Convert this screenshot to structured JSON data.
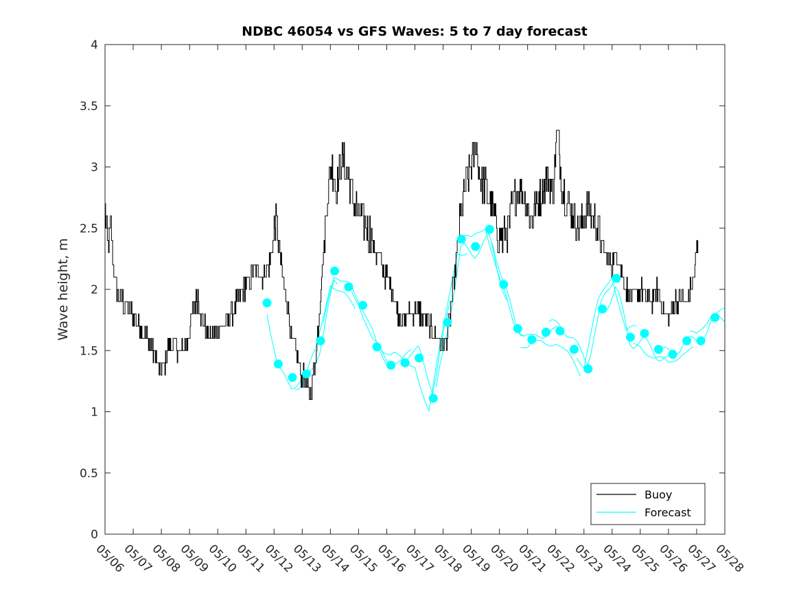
{
  "chart_data": {
    "type": "line",
    "title": "NDBC 46054 vs GFS Waves: 5 to 7 day forecast",
    "xlabel": "",
    "ylabel": "Wave height, m",
    "x_ticks": [
      "05/06",
      "05/07",
      "05/08",
      "05/09",
      "05/10",
      "05/11",
      "05/12",
      "05/13",
      "05/14",
      "05/15",
      "05/16",
      "05/17",
      "05/18",
      "05/19",
      "05/20",
      "05/21",
      "05/22",
      "05/23",
      "05/24",
      "05/25",
      "05/26",
      "05/27",
      "05/28"
    ],
    "xlim": [
      0,
      22
    ],
    "ylim": [
      0,
      4
    ],
    "y_ticks": [
      "0",
      "0.5",
      "1",
      "1.5",
      "2",
      "2.5",
      "3",
      "3.5",
      "4"
    ],
    "grid": false,
    "legend_position": "bottom-right",
    "legend": [
      {
        "label": "Buoy",
        "color": "#000000"
      },
      {
        "label": "Forecast",
        "color": "#00ffff"
      }
    ],
    "buoy_anchors": [
      [
        0.0,
        2.65
      ],
      [
        0.1,
        2.35
      ],
      [
        0.2,
        2.5
      ],
      [
        0.3,
        2.2
      ],
      [
        0.4,
        2.0
      ],
      [
        0.6,
        1.9
      ],
      [
        0.8,
        1.85
      ],
      [
        1.0,
        1.8
      ],
      [
        1.3,
        1.7
      ],
      [
        1.5,
        1.6
      ],
      [
        1.7,
        1.5
      ],
      [
        1.85,
        1.4
      ],
      [
        1.95,
        1.3
      ],
      [
        2.1,
        1.4
      ],
      [
        2.3,
        1.55
      ],
      [
        2.5,
        1.55
      ],
      [
        2.7,
        1.5
      ],
      [
        2.9,
        1.55
      ],
      [
        3.0,
        1.7
      ],
      [
        3.1,
        1.85
      ],
      [
        3.3,
        1.95
      ],
      [
        3.4,
        1.8
      ],
      [
        3.6,
        1.65
      ],
      [
        3.8,
        1.6
      ],
      [
        4.0,
        1.65
      ],
      [
        4.2,
        1.7
      ],
      [
        4.4,
        1.75
      ],
      [
        4.6,
        1.85
      ],
      [
        4.8,
        1.95
      ],
      [
        5.0,
        2.05
      ],
      [
        5.2,
        2.1
      ],
      [
        5.4,
        2.15
      ],
      [
        5.6,
        2.1
      ],
      [
        5.8,
        2.2
      ],
      [
        5.95,
        2.35
      ],
      [
        6.05,
        2.6
      ],
      [
        6.15,
        2.4
      ],
      [
        6.3,
        2.1
      ],
      [
        6.5,
        1.85
      ],
      [
        6.6,
        1.6
      ],
      [
        6.8,
        1.45
      ],
      [
        6.9,
        1.35
      ],
      [
        7.0,
        1.3
      ],
      [
        7.1,
        1.25
      ],
      [
        7.25,
        1.15
      ],
      [
        7.35,
        1.25
      ],
      [
        7.45,
        1.4
      ],
      [
        7.6,
        1.8
      ],
      [
        7.75,
        2.3
      ],
      [
        7.9,
        2.8
      ],
      [
        8.05,
        3.05
      ],
      [
        8.2,
        2.8
      ],
      [
        8.4,
        3.05
      ],
      [
        8.6,
        2.95
      ],
      [
        8.8,
        2.75
      ],
      [
        9.0,
        2.6
      ],
      [
        9.2,
        2.55
      ],
      [
        9.4,
        2.45
      ],
      [
        9.6,
        2.3
      ],
      [
        9.8,
        2.2
      ],
      [
        10.0,
        2.1
      ],
      [
        10.2,
        2.0
      ],
      [
        10.4,
        1.8
      ],
      [
        10.6,
        1.75
      ],
      [
        10.8,
        1.8
      ],
      [
        11.0,
        1.85
      ],
      [
        11.2,
        1.8
      ],
      [
        11.4,
        1.75
      ],
      [
        11.6,
        1.65
      ],
      [
        11.8,
        1.6
      ],
      [
        12.0,
        1.5
      ],
      [
        12.2,
        1.7
      ],
      [
        12.4,
        2.1
      ],
      [
        12.6,
        2.55
      ],
      [
        12.8,
        2.85
      ],
      [
        13.0,
        3.0
      ],
      [
        13.15,
        3.2
      ],
      [
        13.3,
        2.9
      ],
      [
        13.5,
        2.85
      ],
      [
        13.7,
        2.7
      ],
      [
        13.9,
        2.5
      ],
      [
        14.1,
        2.4
      ],
      [
        14.3,
        2.5
      ],
      [
        14.5,
        2.75
      ],
      [
        14.7,
        2.85
      ],
      [
        14.9,
        2.75
      ],
      [
        15.1,
        2.55
      ],
      [
        15.3,
        2.7
      ],
      [
        15.5,
        2.8
      ],
      [
        15.7,
        2.9
      ],
      [
        15.9,
        2.8
      ],
      [
        16.05,
        3.3
      ],
      [
        16.2,
        2.9
      ],
      [
        16.4,
        2.7
      ],
      [
        16.6,
        2.65
      ],
      [
        16.8,
        2.5
      ],
      [
        17.0,
        2.6
      ],
      [
        17.2,
        2.65
      ],
      [
        17.4,
        2.55
      ],
      [
        17.6,
        2.4
      ],
      [
        17.8,
        2.25
      ],
      [
        18.0,
        2.2
      ],
      [
        18.2,
        2.3
      ],
      [
        18.4,
        2.05
      ],
      [
        18.6,
        1.95
      ],
      [
        18.8,
        1.95
      ],
      [
        19.0,
        2.0
      ],
      [
        19.2,
        1.95
      ],
      [
        19.4,
        1.9
      ],
      [
        19.6,
        2.0
      ],
      [
        19.8,
        1.85
      ],
      [
        20.0,
        1.75
      ],
      [
        20.2,
        1.9
      ],
      [
        20.4,
        1.95
      ],
      [
        20.6,
        1.9
      ],
      [
        20.8,
        2.0
      ],
      [
        20.95,
        2.2
      ],
      [
        21.05,
        2.4
      ]
    ],
    "forecast_dots": [
      [
        5.75,
        1.89
      ],
      [
        6.15,
        1.39
      ],
      [
        6.65,
        1.28
      ],
      [
        7.15,
        1.31
      ],
      [
        7.65,
        1.58
      ],
      [
        8.15,
        2.15
      ],
      [
        8.65,
        2.02
      ],
      [
        9.15,
        1.87
      ],
      [
        9.65,
        1.53
      ],
      [
        10.15,
        1.38
      ],
      [
        10.65,
        1.4
      ],
      [
        11.15,
        1.44
      ],
      [
        11.65,
        1.11
      ],
      [
        12.15,
        1.73
      ],
      [
        12.65,
        2.41
      ],
      [
        13.15,
        2.35
      ],
      [
        13.65,
        2.49
      ],
      [
        14.15,
        2.04
      ],
      [
        14.65,
        1.68
      ],
      [
        15.15,
        1.59
      ],
      [
        15.65,
        1.65
      ],
      [
        16.15,
        1.66
      ],
      [
        16.65,
        1.51
      ],
      [
        17.15,
        1.35
      ],
      [
        17.65,
        1.84
      ],
      [
        18.15,
        2.09
      ],
      [
        18.65,
        1.61
      ],
      [
        19.15,
        1.64
      ],
      [
        19.65,
        1.51
      ],
      [
        20.15,
        1.47
      ],
      [
        20.65,
        1.58
      ],
      [
        21.15,
        1.58
      ],
      [
        21.65,
        1.77
      ]
    ]
  }
}
